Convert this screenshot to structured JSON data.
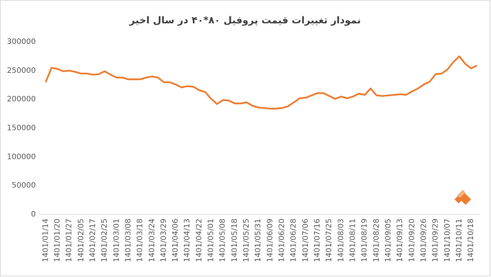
{
  "chart_data": {
    "type": "line",
    "title": "نمودار تغییرات قیمت پروفیل ۸۰*۴۰ در سال اخیر",
    "categories": [
      "1401/01/14",
      null,
      "1401/01/20",
      null,
      "1401/01/27",
      null,
      "1401/02/05",
      null,
      "1401/02/17",
      null,
      "1401/02/25",
      null,
      "1401/03/01",
      null,
      "1401/03/08",
      null,
      "1401/03/18",
      null,
      "1401/03/24",
      null,
      "1401/03/29",
      null,
      "1401/04/06",
      null,
      "1401/04/13",
      null,
      "1401/04/22",
      null,
      "1401/05/01",
      null,
      "1401/05/08",
      null,
      "1401/05/18",
      null,
      "1401/05/25",
      null,
      "1401/05/31",
      null,
      "1401/06/09",
      null,
      "1401/06/20",
      null,
      "1401/06/28",
      null,
      "1401/07/06",
      null,
      "1401/07/16",
      null,
      "1401/07/25",
      null,
      "1401/08/03",
      null,
      "1401/08/11",
      null,
      "1401/08/19",
      null,
      "1401/08/28",
      null,
      "1401/09/05",
      null,
      "1401/09/13",
      null,
      "1401/09/20",
      null,
      "1401/09/26",
      null,
      "1401/09/29",
      null,
      "1401/10/07",
      null,
      "1401/10/11",
      null,
      "1401/10/18",
      null
    ],
    "values": [
      230000,
      255000,
      253000,
      249000,
      250000,
      248000,
      245000,
      245000,
      243000,
      244000,
      249000,
      243000,
      238000,
      238000,
      235000,
      235000,
      235000,
      238000,
      240000,
      238000,
      230000,
      230000,
      226000,
      221000,
      223000,
      222000,
      216000,
      213000,
      201000,
      192000,
      199000,
      198000,
      193000,
      193000,
      195000,
      189000,
      186000,
      185000,
      184000,
      184000,
      185000,
      188000,
      195000,
      202000,
      203000,
      207000,
      211000,
      211000,
      206000,
      201000,
      205000,
      202000,
      205000,
      210000,
      208000,
      219000,
      207000,
      206000,
      207000,
      208000,
      209000,
      208000,
      214000,
      219000,
      226000,
      231000,
      244000,
      245000,
      252000,
      265000,
      275000,
      262000,
      254000,
      259000
    ],
    "color": "#ed7d31",
    "ylim": [
      0,
      300000
    ],
    "yticks": [
      0,
      50000,
      100000,
      150000,
      200000,
      250000,
      300000
    ]
  }
}
